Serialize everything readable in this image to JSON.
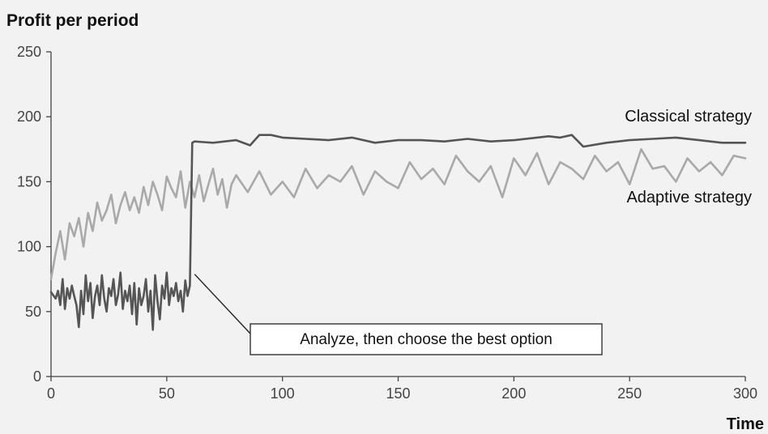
{
  "chart_data": {
    "type": "line",
    "title": "Profit per period",
    "xlabel": "Time",
    "ylabel": "",
    "xlim": [
      0,
      300
    ],
    "ylim": [
      0,
      250
    ],
    "xticks": [
      "0",
      "50",
      "100",
      "150",
      "200",
      "250",
      "300"
    ],
    "yticks": [
      "0",
      "50",
      "100",
      "150",
      "200",
      "250"
    ],
    "grid": false,
    "legend": "none",
    "series": [
      {
        "name": "Classical strategy",
        "color": "#555555",
        "x": [
          0,
          2,
          3,
          4,
          5,
          6,
          7,
          8,
          9,
          10,
          11,
          12,
          13,
          14,
          15,
          16,
          17,
          18,
          19,
          20,
          21,
          22,
          23,
          24,
          25,
          26,
          27,
          28,
          29,
          30,
          31,
          32,
          33,
          34,
          35,
          36,
          37,
          38,
          39,
          40,
          41,
          42,
          43,
          44,
          45,
          46,
          47,
          48,
          49,
          50,
          51,
          52,
          53,
          54,
          55,
          56,
          57,
          58,
          59,
          60,
          61,
          62,
          70,
          80,
          86,
          90,
          95,
          100,
          110,
          120,
          130,
          140,
          150,
          160,
          170,
          180,
          190,
          200,
          210,
          215,
          220,
          225,
          230,
          240,
          250,
          260,
          270,
          280,
          290,
          300
        ],
        "y": [
          65,
          60,
          66,
          55,
          75,
          52,
          68,
          60,
          70,
          62,
          55,
          38,
          66,
          48,
          78,
          58,
          72,
          45,
          62,
          70,
          55,
          78,
          60,
          50,
          68,
          62,
          75,
          55,
          63,
          80,
          52,
          66,
          58,
          70,
          48,
          72,
          40,
          68,
          55,
          62,
          75,
          50,
          66,
          36,
          78,
          58,
          44,
          70,
          60,
          80,
          55,
          68,
          62,
          72,
          58,
          66,
          50,
          74,
          62,
          70,
          180,
          181,
          180,
          182,
          178,
          186,
          186,
          184,
          183,
          182,
          184,
          180,
          182,
          182,
          181,
          183,
          181,
          182,
          184,
          185,
          184,
          186,
          177,
          180,
          182,
          183,
          184,
          182,
          180,
          180
        ]
      },
      {
        "name": "Adaptive strategy",
        "color": "#a9a9a9",
        "x": [
          0,
          2,
          4,
          6,
          8,
          10,
          12,
          14,
          16,
          18,
          20,
          22,
          24,
          26,
          28,
          30,
          32,
          34,
          36,
          38,
          40,
          42,
          44,
          46,
          48,
          50,
          52,
          54,
          56,
          58,
          60,
          62,
          64,
          66,
          68,
          70,
          72,
          74,
          76,
          78,
          80,
          85,
          90,
          95,
          100,
          105,
          110,
          115,
          120,
          125,
          130,
          135,
          140,
          145,
          150,
          155,
          160,
          165,
          170,
          175,
          180,
          185,
          190,
          195,
          200,
          205,
          210,
          215,
          220,
          225,
          230,
          235,
          240,
          245,
          250,
          255,
          260,
          265,
          270,
          275,
          280,
          285,
          290,
          295,
          300
        ],
        "y": [
          75,
          95,
          112,
          90,
          118,
          108,
          122,
          100,
          126,
          112,
          134,
          120,
          128,
          140,
          118,
          132,
          142,
          128,
          138,
          126,
          146,
          132,
          150,
          140,
          128,
          154,
          145,
          138,
          158,
          130,
          150,
          138,
          155,
          135,
          148,
          160,
          140,
          152,
          130,
          148,
          155,
          142,
          158,
          140,
          150,
          138,
          160,
          145,
          155,
          150,
          162,
          140,
          158,
          150,
          145,
          165,
          152,
          160,
          148,
          170,
          158,
          150,
          162,
          138,
          168,
          155,
          172,
          148,
          165,
          160,
          152,
          170,
          158,
          165,
          148,
          175,
          160,
          162,
          150,
          168,
          158,
          165,
          155,
          170,
          168
        ]
      }
    ],
    "annotations": [
      {
        "text": "Classical strategy"
      },
      {
        "text": "Adaptive strategy"
      },
      {
        "text": "Analyze, then choose the best option",
        "x": 61,
        "y": 75
      }
    ]
  }
}
